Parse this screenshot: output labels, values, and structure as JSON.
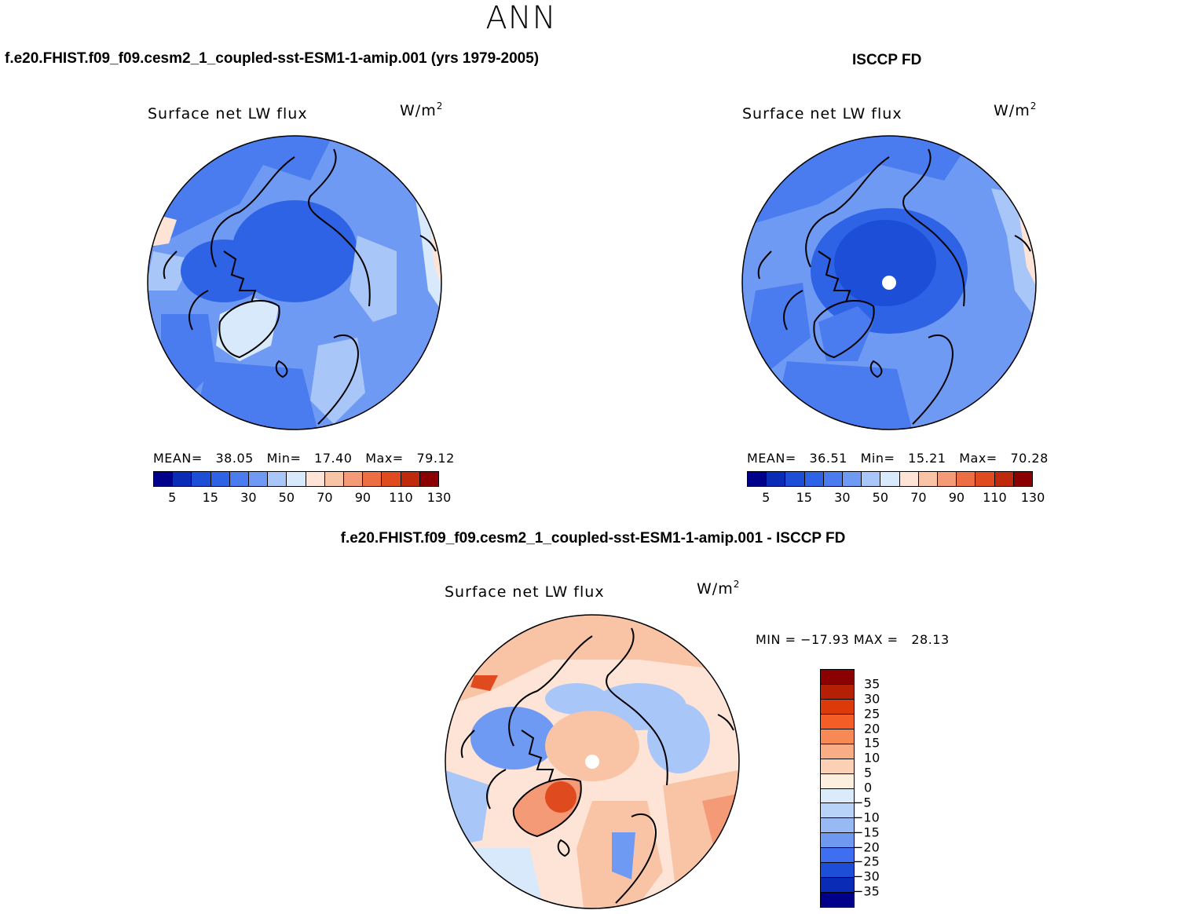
{
  "figure": {
    "title": "ANN",
    "units_base": "W/m",
    "units_exp": "2"
  },
  "panels": [
    {
      "case_title": "f.e20.FHIST.f09_f09.cesm2_1_coupled-sst-ESM1-1-amip.001 (yrs 1979-2005)",
      "plot_title": "Surface net LW flux",
      "stats_label_mean": "MEAN=",
      "stats_mean": "38.05",
      "stats_label_min": "Min=",
      "stats_min": "17.40",
      "stats_label_max": "Max=",
      "stats_max": "79.12"
    },
    {
      "case_title": "ISCCP FD",
      "plot_title": "Surface net LW flux",
      "stats_label_mean": "MEAN=",
      "stats_mean": "36.51",
      "stats_label_min": "Min=",
      "stats_min": "15.21",
      "stats_label_max": "Max=",
      "stats_max": "70.28"
    },
    {
      "case_title": "f.e20.FHIST.f09_f09.cesm2_1_coupled-sst-ESM1-1-amip.001 - ISCCP FD",
      "plot_title": "Surface net LW flux",
      "stats_text": "MIN = −17.93 MAX =   28.13"
    }
  ],
  "colorbar_main": {
    "colors": [
      "#00008b",
      "#0a2bb5",
      "#1d4ed8",
      "#2e63e6",
      "#4a7cf0",
      "#6f9af3",
      "#a9c6f8",
      "#d8e9fb",
      "#fde4d6",
      "#f9c3a6",
      "#f49a76",
      "#ec6e42",
      "#e04a1f",
      "#bf2a0c",
      "#8b0000"
    ],
    "tick_labels": [
      "5",
      "15",
      "30",
      "50",
      "70",
      "90",
      "110",
      "130"
    ]
  },
  "colorbar_diff": {
    "colors": [
      "#8b0000",
      "#b51f06",
      "#dd3a0c",
      "#f45e26",
      "#f78a54",
      "#f9ad84",
      "#fcd0b5",
      "#fdeedd",
      "#dcebfb",
      "#b9d3f8",
      "#97b9f4",
      "#6f98f0",
      "#3e6ff0",
      "#1d4ed8",
      "#0a2bb5",
      "#00008b"
    ],
    "tick_labels": [
      "35",
      "30",
      "25",
      "20",
      "15",
      "10",
      "5",
      "0",
      "−5",
      "−10",
      "−15",
      "−20",
      "−25",
      "−30",
      "−35"
    ]
  },
  "map_colors": {
    "deep_blue": "#2e63e6",
    "mid_blue": "#4a7cf0",
    "light_blue": "#6f9af3",
    "pale_blue": "#a9c6f8",
    "very_pale": "#d8e9fb",
    "pale_orange": "#fde4d6",
    "orange": "#f9c3a6",
    "dark_orange": "#f49a76",
    "red": "#e04a1f",
    "strong_blue": "#1d4ed8"
  }
}
